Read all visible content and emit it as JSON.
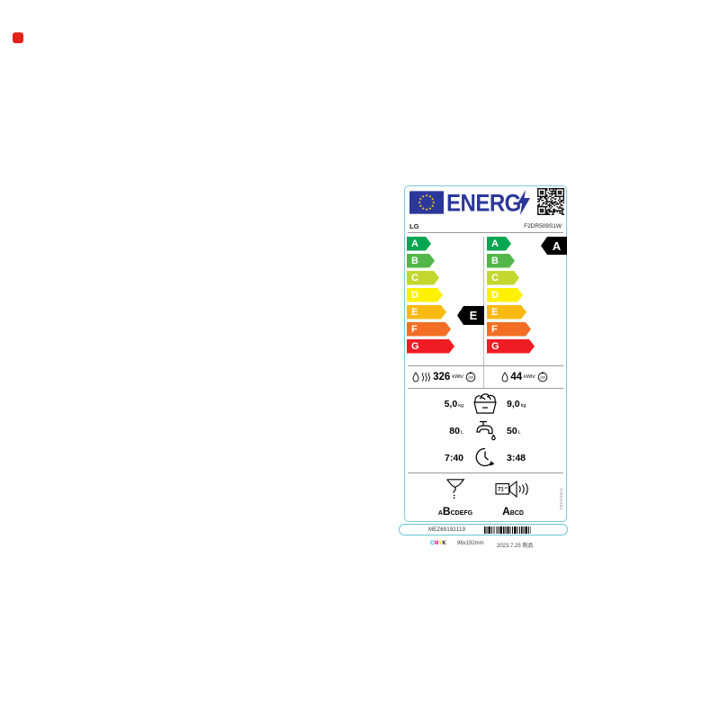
{
  "label": {
    "header": {
      "energ_word": "ENERG",
      "supplier": "LG",
      "model": "F2DR509S1W"
    },
    "scale": {
      "grades": [
        "A",
        "B",
        "C",
        "D",
        "E",
        "F",
        "G"
      ],
      "colors": {
        "A": "#00a651",
        "B": "#51b747",
        "C": "#c3d82e",
        "D": "#fff200",
        "E": "#fbba12",
        "F": "#f36e22",
        "G": "#ee1d23"
      },
      "accent_blue": "#2b379b",
      "border_blue": "#7ecadf"
    },
    "wash_dry": {
      "class": "E",
      "energy": "326",
      "energy_unit": "kWh/",
      "cycles": "100",
      "load": "5,0",
      "load_unit": "kg",
      "water": "80",
      "water_unit": "L",
      "duration": "7:40"
    },
    "wash": {
      "class": "A",
      "energy": "44",
      "energy_unit": "kWh/",
      "cycles": "100",
      "load": "9,0",
      "load_unit": "kg",
      "water": "50",
      "water_unit": "L",
      "duration": "3:48"
    },
    "spin": {
      "letters": [
        "A",
        "B",
        "C",
        "D",
        "E",
        "F",
        "G"
      ],
      "class": "B"
    },
    "noise": {
      "value": "71",
      "unit": "dB",
      "letters": [
        "A",
        "B",
        "C",
        "D"
      ],
      "class": "A"
    },
    "regulation": "2019/2014"
  },
  "footer": {
    "part_number": "MEZ69192119",
    "color_marks": [
      "C",
      "M",
      "Y",
      "K"
    ],
    "size": "96x192mm",
    "date": "2023.7.25 制品"
  }
}
